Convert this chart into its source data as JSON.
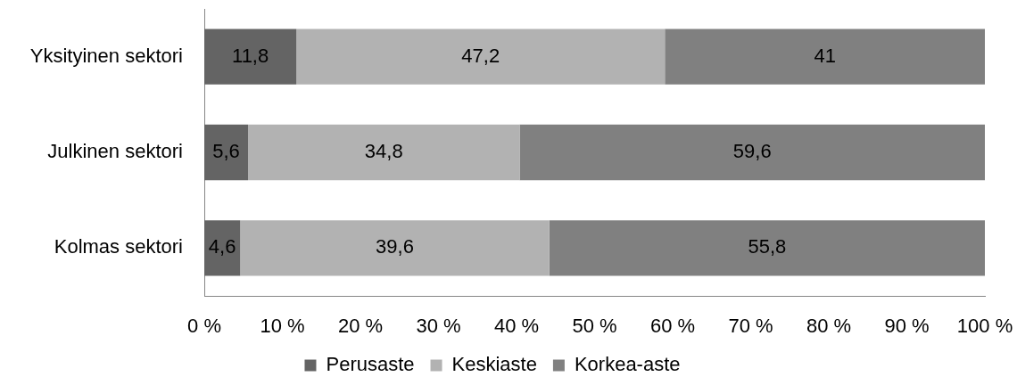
{
  "chart_data": {
    "type": "bar",
    "orientation": "horizontal",
    "stacked": true,
    "legend": "bottom",
    "grid": false,
    "categories": [
      "Yksityinen sektori",
      "Julkinen sektori",
      "Kolmas sektori"
    ],
    "series": [
      {
        "name": "Perusaste",
        "color": "#646464",
        "values": [
          11.8,
          5.6,
          4.6
        ],
        "value_labels": [
          "11,8",
          "5,6",
          "4,6"
        ]
      },
      {
        "name": "Keskiaste",
        "color": "#b2b2b2",
        "values": [
          47.2,
          34.8,
          39.6
        ],
        "value_labels": [
          "47,2",
          "34,8",
          "39,6"
        ]
      },
      {
        "name": "Korkea-aste",
        "color": "#808080",
        "values": [
          41,
          59.6,
          55.8
        ],
        "value_labels": [
          "41",
          "59,6",
          "55,8"
        ]
      }
    ],
    "xlim": [
      0,
      100
    ],
    "xticks": [
      {
        "value": 0,
        "label": "0 %"
      },
      {
        "value": 10,
        "label": "10 %"
      },
      {
        "value": 20,
        "label": "20 %"
      },
      {
        "value": 30,
        "label": "30 %"
      },
      {
        "value": 40,
        "label": "40 %"
      },
      {
        "value": 50,
        "label": "50 %"
      },
      {
        "value": 60,
        "label": "60 %"
      },
      {
        "value": 70,
        "label": "70 %"
      },
      {
        "value": 80,
        "label": "80 %"
      },
      {
        "value": 90,
        "label": "90 %"
      },
      {
        "value": 100,
        "label": "100 %"
      }
    ]
  }
}
